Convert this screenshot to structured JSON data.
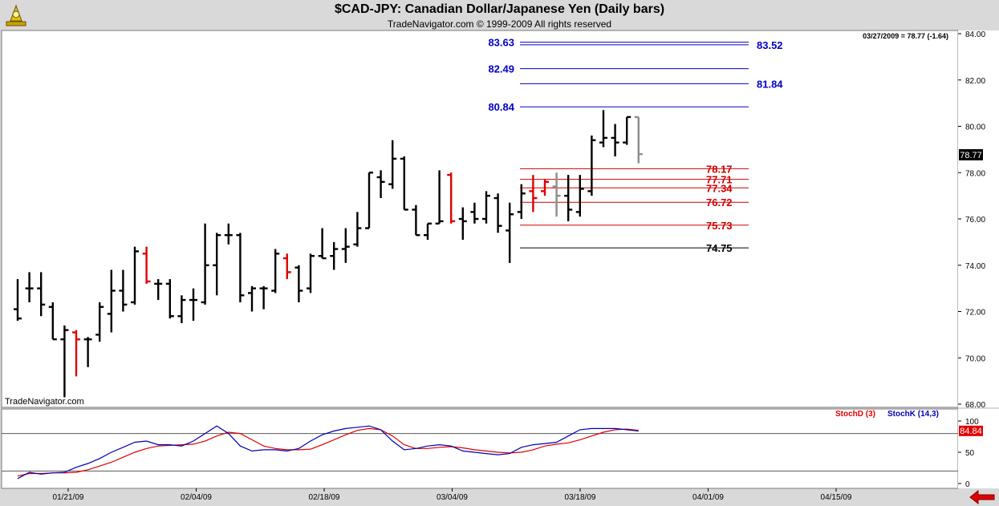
{
  "header": {
    "title": "$CAD-JPY:  Canadian Dollar/Japanese Yen  (Daily bars)",
    "subtitle": "TradeNavigator.com © 1999-2009 All rights reserved"
  },
  "watermark": "TradeNavigator.com",
  "colors": {
    "up_bar": "#000000",
    "red_bar": "#e00000",
    "gray_bar": "#8c8c8c",
    "target_line": "#0000c8",
    "support_line": "#d00000",
    "stoch_d": "#e00000",
    "stoch_k": "#0000b4",
    "price_tag_bg": "#000000",
    "stoch_tag_bg": "#e00000"
  },
  "chart_data": [
    {
      "type": "ohlc",
      "title": "$CAD-JPY:  Canadian Dollar/Japanese Yen  (Daily bars)",
      "info_label": "03/27/2009 = 78.77 (-1.64)",
      "last_price_label": "78.77",
      "last_price": 78.77,
      "ylim": [
        68.0,
        84.0
      ],
      "yticks": [
        "84.00",
        "82.00",
        "80.00",
        "78.00",
        "76.00",
        "74.00",
        "72.00",
        "70.00",
        "68.00"
      ],
      "ytick_values": [
        84,
        82,
        80,
        78,
        76,
        74,
        72,
        70,
        68
      ],
      "xticks": [
        "01/21/09",
        "02/04/09",
        "02/18/09",
        "03/04/09",
        "03/18/09",
        "04/01/09",
        "04/15/09"
      ],
      "bars": [
        {
          "h": 73.4,
          "l": 71.6,
          "o": 72.1,
          "c": 71.7,
          "col": "k"
        },
        {
          "h": 73.7,
          "l": 72.4,
          "o": 73.0,
          "c": 73.0,
          "col": "k"
        },
        {
          "h": 73.7,
          "l": 71.8,
          "o": 73.0,
          "c": 72.3,
          "col": "k"
        },
        {
          "h": 72.4,
          "l": 70.8,
          "o": 72.2,
          "c": 70.8,
          "col": "k"
        },
        {
          "h": 71.4,
          "l": 68.3,
          "o": 70.8,
          "c": 71.2,
          "col": "k"
        },
        {
          "h": 71.2,
          "l": 69.2,
          "o": 71.1,
          "c": 70.8,
          "col": "r"
        },
        {
          "h": 70.9,
          "l": 69.6,
          "o": 70.8,
          "c": 70.8,
          "col": "k"
        },
        {
          "h": 72.4,
          "l": 70.7,
          "o": 71.0,
          "c": 72.2,
          "col": "k"
        },
        {
          "h": 73.8,
          "l": 71.1,
          "o": 71.9,
          "c": 72.9,
          "col": "k"
        },
        {
          "h": 73.8,
          "l": 72.0,
          "o": 72.9,
          "c": 72.3,
          "col": "k"
        },
        {
          "h": 74.8,
          "l": 72.3,
          "o": 72.4,
          "c": 74.6,
          "col": "k"
        },
        {
          "h": 74.8,
          "l": 73.2,
          "o": 74.5,
          "c": 73.3,
          "col": "r"
        },
        {
          "h": 73.4,
          "l": 72.5,
          "o": 73.2,
          "c": 73.2,
          "col": "k"
        },
        {
          "h": 73.4,
          "l": 71.7,
          "o": 73.2,
          "c": 71.8,
          "col": "k"
        },
        {
          "h": 72.7,
          "l": 71.5,
          "o": 71.8,
          "c": 72.5,
          "col": "k"
        },
        {
          "h": 73.0,
          "l": 71.6,
          "o": 72.5,
          "c": 72.5,
          "col": "k"
        },
        {
          "h": 75.8,
          "l": 72.3,
          "o": 72.4,
          "c": 74.0,
          "col": "k"
        },
        {
          "h": 75.4,
          "l": 72.7,
          "o": 74.0,
          "c": 75.3,
          "col": "k"
        },
        {
          "h": 75.8,
          "l": 74.9,
          "o": 75.3,
          "c": 75.3,
          "col": "k"
        },
        {
          "h": 75.4,
          "l": 72.4,
          "o": 75.3,
          "c": 72.7,
          "col": "k"
        },
        {
          "h": 73.1,
          "l": 72.0,
          "o": 72.8,
          "c": 73.0,
          "col": "k"
        },
        {
          "h": 73.1,
          "l": 72.1,
          "o": 73.0,
          "c": 73.0,
          "col": "k"
        },
        {
          "h": 74.7,
          "l": 72.8,
          "o": 72.9,
          "c": 74.5,
          "col": "k"
        },
        {
          "h": 74.5,
          "l": 73.4,
          "o": 74.3,
          "c": 73.7,
          "col": "r"
        },
        {
          "h": 74.0,
          "l": 72.4,
          "o": 73.9,
          "c": 72.9,
          "col": "k"
        },
        {
          "h": 74.5,
          "l": 72.8,
          "o": 73.0,
          "c": 74.4,
          "col": "k"
        },
        {
          "h": 75.6,
          "l": 74.3,
          "o": 74.4,
          "c": 74.3,
          "col": "k"
        },
        {
          "h": 75.0,
          "l": 73.8,
          "o": 74.4,
          "c": 74.7,
          "col": "k"
        },
        {
          "h": 75.6,
          "l": 74.1,
          "o": 74.7,
          "c": 74.8,
          "col": "k"
        },
        {
          "h": 76.3,
          "l": 74.8,
          "o": 74.9,
          "c": 75.6,
          "col": "k"
        },
        {
          "h": 78.0,
          "l": 75.6,
          "o": 75.6,
          "c": 78.0,
          "col": "k"
        },
        {
          "h": 78.1,
          "l": 76.9,
          "o": 77.8,
          "c": 77.6,
          "col": "k"
        },
        {
          "h": 79.4,
          "l": 77.3,
          "o": 77.5,
          "c": 78.6,
          "col": "k"
        },
        {
          "h": 78.7,
          "l": 76.4,
          "o": 78.6,
          "c": 76.4,
          "col": "k"
        },
        {
          "h": 76.6,
          "l": 75.3,
          "o": 76.4,
          "c": 75.3,
          "col": "k"
        },
        {
          "h": 75.8,
          "l": 75.1,
          "o": 75.3,
          "c": 75.8,
          "col": "k"
        },
        {
          "h": 78.1,
          "l": 75.8,
          "o": 75.8,
          "c": 75.9,
          "col": "k"
        },
        {
          "h": 78.0,
          "l": 75.8,
          "o": 77.9,
          "c": 75.9,
          "col": "r"
        },
        {
          "h": 76.5,
          "l": 75.1,
          "o": 76.0,
          "c": 75.9,
          "col": "k"
        },
        {
          "h": 76.7,
          "l": 75.8,
          "o": 76.3,
          "c": 76.0,
          "col": "k"
        },
        {
          "h": 77.2,
          "l": 75.8,
          "o": 76.0,
          "c": 77.0,
          "col": "k"
        },
        {
          "h": 77.1,
          "l": 75.4,
          "o": 76.9,
          "c": 75.7,
          "col": "k"
        },
        {
          "h": 76.7,
          "l": 74.1,
          "o": 75.5,
          "c": 76.2,
          "col": "k"
        },
        {
          "h": 77.5,
          "l": 76.0,
          "o": 76.3,
          "c": 77.1,
          "col": "k"
        },
        {
          "h": 77.9,
          "l": 76.3,
          "o": 77.2,
          "c": 76.9,
          "col": "r"
        },
        {
          "h": 77.7,
          "l": 77.0,
          "o": 77.2,
          "c": 77.6,
          "col": "r"
        },
        {
          "h": 78.0,
          "l": 76.1,
          "o": 77.4,
          "c": 77.0,
          "col": "g"
        },
        {
          "h": 77.9,
          "l": 75.9,
          "o": 77.0,
          "c": 76.4,
          "col": "k"
        },
        {
          "h": 77.9,
          "l": 76.1,
          "o": 76.3,
          "c": 77.3,
          "col": "k"
        },
        {
          "h": 79.6,
          "l": 77.0,
          "o": 77.2,
          "c": 79.4,
          "col": "k"
        },
        {
          "h": 80.7,
          "l": 79.1,
          "o": 79.3,
          "c": 79.5,
          "col": "k"
        },
        {
          "h": 80.1,
          "l": 78.7,
          "o": 79.5,
          "c": 79.3,
          "col": "k"
        },
        {
          "h": 80.4,
          "l": 79.2,
          "o": 79.3,
          "c": 80.4,
          "col": "k"
        },
        {
          "h": 80.4,
          "l": 78.4,
          "o": 80.4,
          "c": 78.8,
          "col": "g"
        }
      ],
      "levels": [
        {
          "value": 83.63,
          "label": "83.63",
          "color": "#0000c8",
          "side": "left"
        },
        {
          "value": 83.52,
          "label": "83.52",
          "color": "#0000c8",
          "side": "right"
        },
        {
          "value": 82.49,
          "label": "82.49",
          "color": "#0000c8",
          "side": "left"
        },
        {
          "value": 81.84,
          "label": "81.84",
          "color": "#0000c8",
          "side": "right"
        },
        {
          "value": 80.84,
          "label": "80.84",
          "color": "#0000c8",
          "side": "left"
        },
        {
          "value": 78.17,
          "label": "78.17",
          "color": "#d00000",
          "side": "right"
        },
        {
          "value": 77.71,
          "label": "77.71",
          "color": "#d00000",
          "side": "right"
        },
        {
          "value": 77.34,
          "label": "77.34",
          "color": "#d00000",
          "side": "right"
        },
        {
          "value": 76.72,
          "label": "76.72",
          "color": "#d00000",
          "side": "right"
        },
        {
          "value": 75.73,
          "label": "75.73",
          "color": "#d00000",
          "side": "right"
        },
        {
          "value": 74.75,
          "label": "74.75",
          "color": "#000000",
          "side": "right"
        }
      ]
    },
    {
      "type": "line",
      "ylim": [
        0,
        100
      ],
      "yticks": [
        "100",
        "50",
        "0"
      ],
      "ytick_values": [
        100,
        50,
        0
      ],
      "hlines": [
        80,
        20
      ],
      "last_value_label": "84.84",
      "last_value": 84.84,
      "series": [
        {
          "name": "StochD (3)",
          "color": "#e00000",
          "values": [
            12,
            16,
            16,
            17,
            17,
            18,
            22,
            28,
            34,
            42,
            50,
            56,
            60,
            61,
            62,
            63,
            68,
            76,
            82,
            80,
            70,
            60,
            56,
            54,
            54,
            55,
            62,
            70,
            78,
            85,
            88,
            86,
            76,
            62,
            56,
            56,
            58,
            59,
            57,
            54,
            52,
            50,
            49,
            50,
            54,
            60,
            63,
            65,
            70,
            76,
            82,
            86,
            87,
            85
          ]
        },
        {
          "name": "StochK (14,3)",
          "color": "#0000b4",
          "values": [
            8,
            18,
            15,
            17,
            18,
            26,
            32,
            40,
            50,
            58,
            66,
            68,
            62,
            62,
            60,
            68,
            80,
            92,
            80,
            60,
            52,
            54,
            54,
            52,
            56,
            68,
            78,
            84,
            88,
            90,
            92,
            86,
            68,
            54,
            56,
            60,
            62,
            60,
            52,
            50,
            48,
            46,
            48,
            58,
            62,
            64,
            66,
            76,
            86,
            88,
            88,
            88,
            86,
            84
          ]
        }
      ]
    }
  ]
}
